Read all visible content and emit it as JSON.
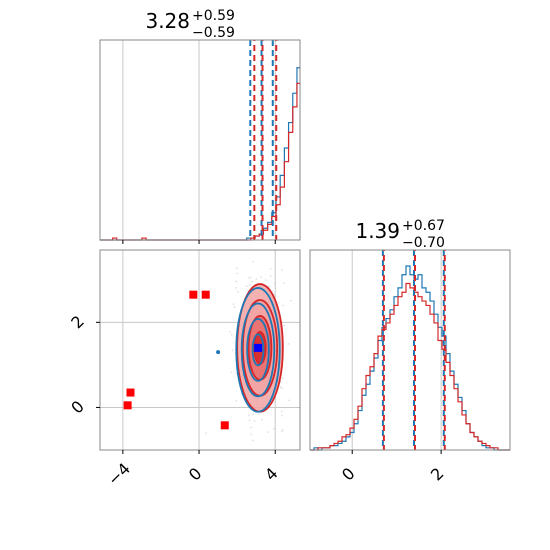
{
  "chart_data": [
    {
      "type": "histogram",
      "panel": "marginal-x",
      "title": {
        "value": "3.28",
        "plus": "+0.59",
        "minus": "−0.59"
      },
      "xlim": [
        -5.2,
        5.3
      ],
      "quantile_lines": {
        "blue": [
          2.69,
          3.28,
          3.87
        ],
        "red": [
          2.85,
          3.28,
          4.0
        ]
      },
      "bins_start": -5.2,
      "bin_width": 0.22,
      "blue_counts": [
        0,
        0,
        0,
        0,
        0,
        0,
        0,
        0,
        0,
        0,
        0,
        0,
        0,
        0,
        0,
        0,
        0,
        0,
        0,
        0,
        0,
        0,
        0,
        0,
        0,
        0,
        0,
        0,
        0,
        0,
        0,
        0,
        0,
        0,
        0,
        1,
        1,
        2,
        3,
        6,
        9,
        14,
        22,
        33,
        47,
        60,
        75,
        88,
        92,
        94,
        85,
        70,
        52,
        35,
        18,
        8,
        3,
        1,
        1,
        0,
        0,
        0,
        0,
        0,
        0,
        0,
        0,
        0
      ],
      "red_counts": [
        0,
        0,
        0,
        1,
        0,
        0,
        0,
        0,
        0,
        0,
        1,
        0,
        0,
        0,
        0,
        0,
        0,
        0,
        0,
        0,
        0,
        0,
        0,
        0,
        0,
        0,
        0,
        0,
        0,
        0,
        0,
        0,
        0,
        0,
        0,
        0,
        1,
        2,
        3,
        5,
        8,
        12,
        18,
        27,
        40,
        55,
        68,
        80,
        86,
        90,
        88,
        80,
        65,
        48,
        30,
        18,
        9,
        4,
        2,
        1,
        0,
        0,
        0,
        0,
        0,
        0,
        0,
        0
      ]
    },
    {
      "type": "histogram",
      "panel": "marginal-y",
      "title": {
        "value": "1.39",
        "plus": "+0.67",
        "minus": "−0.70"
      },
      "xlim": [
        -0.95,
        3.55
      ],
      "quantile_lines": {
        "blue": [
          0.69,
          1.39,
          2.06
        ],
        "red": [
          0.69,
          1.39,
          2.06
        ]
      },
      "bins_start": -0.95,
      "bin_width": 0.09,
      "blue_counts": [
        0,
        1,
        0,
        1,
        1,
        2,
        2,
        3,
        4,
        6,
        8,
        12,
        18,
        25,
        30,
        36,
        42,
        50,
        56,
        60,
        64,
        70,
        74,
        80,
        84,
        80,
        78,
        80,
        74,
        72,
        68,
        62,
        56,
        52,
        44,
        36,
        30,
        24,
        18,
        12,
        8,
        6,
        4,
        2,
        1,
        1,
        0,
        0,
        0,
        0
      ],
      "red_counts": [
        0,
        0,
        1,
        1,
        1,
        2,
        3,
        4,
        6,
        7,
        10,
        14,
        20,
        28,
        34,
        38,
        44,
        52,
        55,
        58,
        62,
        66,
        70,
        72,
        76,
        74,
        72,
        70,
        68,
        66,
        62,
        58,
        50,
        46,
        40,
        34,
        28,
        22,
        16,
        12,
        8,
        6,
        4,
        3,
        2,
        1,
        1,
        0,
        0,
        0
      ]
    },
    {
      "type": "scatter",
      "panel": "joint",
      "xlim": [
        -5.2,
        5.3
      ],
      "ylim": [
        -1.0,
        3.7
      ],
      "x_ticks": [
        "−4",
        "0",
        "4"
      ],
      "y_ticks": [
        "0",
        "2"
      ],
      "x_tick_values": [
        -4,
        0,
        4
      ],
      "y_tick_values": [
        0,
        2
      ],
      "red_markers": [
        {
          "x": -0.3,
          "y": 2.65
        },
        {
          "x": 0.35,
          "y": 2.65
        },
        {
          "x": -3.6,
          "y": 0.35
        },
        {
          "x": -3.75,
          "y": 0.05
        },
        {
          "x": 1.35,
          "y": -0.42
        }
      ],
      "blue_marker": {
        "x": 3.1,
        "y": 1.4
      },
      "blue_dot": {
        "x": 1.0,
        "y": 1.3
      },
      "contour_center": {
        "x": 3.2,
        "y": 1.4
      },
      "contour_sd": {
        "x": 0.6,
        "y": 0.75
      },
      "contour_levels": [
        0.5,
        1.0,
        1.5,
        2.0
      ],
      "colors": {
        "blue": "#1f77b4",
        "red": "#d62728",
        "marker_red": "#ff0000",
        "marker_blue": "#0000ff",
        "fill_light": "#f2a3a3",
        "fill_mid": "#e76a6a",
        "fill_dark": "#d62728",
        "grid": "#c8c8c8",
        "spine": "#888888"
      }
    }
  ]
}
